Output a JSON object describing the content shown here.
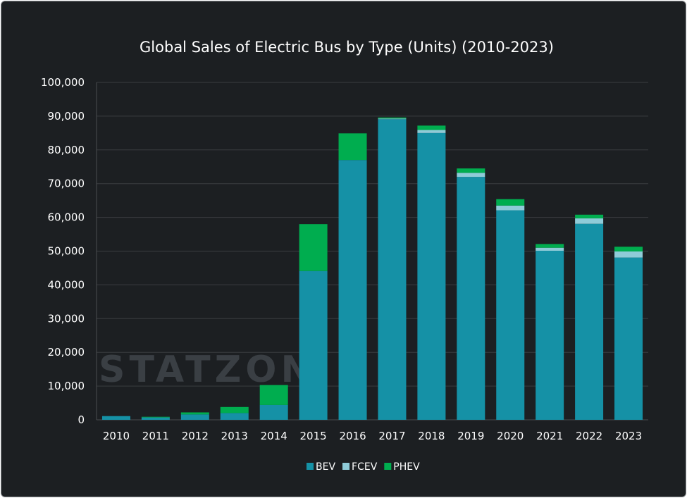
{
  "chart_data": {
    "type": "bar",
    "stacked": true,
    "title": "Global Sales of Electric Bus by Type (Units) (2010-2023)",
    "xlabel": "",
    "ylabel": "",
    "ylim": [
      0,
      100000
    ],
    "yticks": [
      "0",
      "10,000",
      "20,000",
      "30,000",
      "40,000",
      "50,000",
      "60,000",
      "70,000",
      "80,000",
      "90,000",
      "100,000"
    ],
    "grid": true,
    "legend_position": "bottom",
    "categories": [
      "2010",
      "2011",
      "2012",
      "2013",
      "2014",
      "2015",
      "2016",
      "2017",
      "2018",
      "2019",
      "2020",
      "2021",
      "2022",
      "2023"
    ],
    "series": [
      {
        "name": "BEV",
        "color": "#1591a6",
        "values": [
          1100,
          700,
          1600,
          2000,
          4400,
          44100,
          77000,
          89100,
          85000,
          72000,
          62100,
          50100,
          58100,
          48100
        ]
      },
      {
        "name": "FCEV",
        "color": "#8fcbd8",
        "values": [
          0,
          0,
          0,
          0,
          0,
          0,
          0,
          200,
          900,
          1200,
          1400,
          900,
          1600,
          1800
        ]
      },
      {
        "name": "PHEV",
        "color": "#00ad4f",
        "values": [
          0,
          200,
          600,
          1800,
          5900,
          13900,
          7900,
          300,
          1300,
          1300,
          1900,
          1100,
          1100,
          1400
        ]
      }
    ]
  },
  "watermark": "STATZON",
  "colors": {
    "background": "#1c1f22",
    "grid": "#3a3d40",
    "text": "#ffffff"
  }
}
